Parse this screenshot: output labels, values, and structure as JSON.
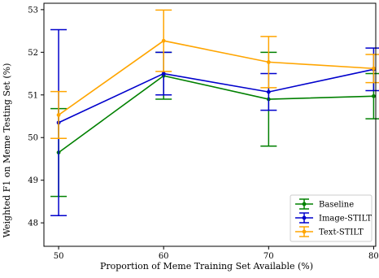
{
  "chart_data": {
    "type": "line",
    "xlabel": "Proportion of Meme Training Set Available (%)",
    "ylabel": "Weighted F1 on Meme Testing Set (%)",
    "xlim": [
      48.6,
      80.2
    ],
    "ylim": [
      47.45,
      53.15
    ],
    "x_ticks": [
      50,
      60,
      70,
      80
    ],
    "y_ticks": [
      48,
      49,
      50,
      51,
      52,
      53
    ],
    "x": [
      50,
      60,
      70,
      80
    ],
    "grid": false,
    "legend_position": "lower-right",
    "series": [
      {
        "name": "Baseline",
        "color": "#008000",
        "values": [
          49.65,
          51.45,
          50.9,
          50.97
        ],
        "errors": [
          1.03,
          0.55,
          1.1,
          0.53
        ]
      },
      {
        "name": "Image-STILT",
        "color": "#0000cc",
        "values": [
          50.35,
          51.5,
          51.07,
          51.6
        ],
        "errors": [
          2.18,
          0.5,
          0.43,
          0.5
        ]
      },
      {
        "name": "Text-STILT",
        "color": "#ffa500",
        "values": [
          50.53,
          52.27,
          51.77,
          51.62
        ],
        "errors": [
          0.55,
          0.72,
          0.6,
          0.33
        ]
      }
    ]
  }
}
